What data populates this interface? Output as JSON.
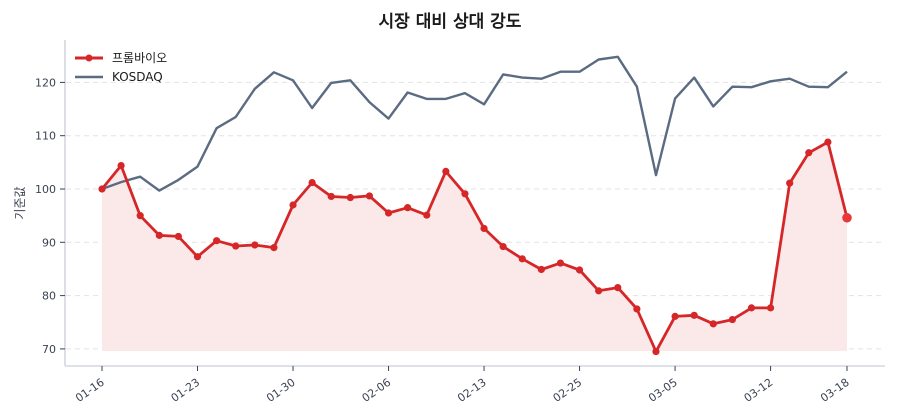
{
  "chart_data": {
    "type": "line",
    "title": "시장 대비 상대 강도",
    "xlabel": "",
    "ylabel": "기준값",
    "ylim": [
      67,
      128
    ],
    "yticks": [
      70,
      80,
      90,
      100,
      110,
      120
    ],
    "grid": true,
    "legend_position": "upper left",
    "x": [
      "01-16",
      "01-17",
      "01-20",
      "01-21",
      "01-22",
      "01-23",
      "01-24",
      "01-27",
      "01-28",
      "01-29",
      "01-30",
      "01-31",
      "02-03",
      "02-04",
      "02-05",
      "02-06",
      "02-07",
      "02-10",
      "02-11",
      "02-12",
      "02-13",
      "02-14",
      "02-17",
      "02-18",
      "02-19",
      "02-25",
      "02-26",
      "02-27",
      "02-28",
      "03-04",
      "03-05",
      "03-06",
      "03-07",
      "03-10",
      "03-11",
      "03-12",
      "03-13",
      "03-14",
      "03-17",
      "03-18"
    ],
    "xtick_labels": [
      {
        "index": 0,
        "label": "01-16"
      },
      {
        "index": 5,
        "label": "01-23"
      },
      {
        "index": 10,
        "label": "01-30"
      },
      {
        "index": 15,
        "label": "02-06"
      },
      {
        "index": 20,
        "label": "02-13"
      },
      {
        "index": 25,
        "label": "02-25"
      },
      {
        "index": 30,
        "label": "03-05"
      },
      {
        "index": 35,
        "label": "03-12"
      },
      {
        "index": 39,
        "label": "03-18"
      }
    ],
    "series": [
      {
        "name": "프롬바이오",
        "color": "#d62728",
        "fill": "#fbe9e9",
        "marker": true,
        "values": [
          100,
          104.4,
          95.0,
          91.3,
          91.1,
          87.3,
          90.3,
          89.3,
          89.5,
          89.0,
          97.0,
          101.2,
          98.6,
          98.4,
          98.7,
          95.5,
          96.5,
          95.1,
          103.3,
          99.1,
          92.6,
          89.2,
          86.9,
          84.9,
          86.1,
          84.8,
          80.9,
          81.5,
          77.5,
          69.5,
          76.1,
          76.3,
          74.7,
          75.5,
          77.7,
          77.7,
          101.1,
          106.8,
          108.8,
          94.6
        ]
      },
      {
        "name": "KOSDAQ",
        "color": "#5b6b82",
        "marker": false,
        "values": [
          100,
          101.3,
          102.3,
          99.7,
          101.7,
          104.2,
          111.4,
          113.5,
          118.8,
          121.9,
          120.4,
          115.2,
          119.9,
          120.4,
          116.3,
          113.2,
          118.1,
          116.9,
          116.9,
          118.0,
          115.9,
          121.5,
          120.9,
          120.7,
          122.0,
          122.0,
          124.3,
          124.8,
          119.2,
          102.6,
          117.0,
          120.9,
          115.5,
          119.2,
          119.1,
          120.2,
          120.7,
          119.2,
          119.1,
          122.0
        ]
      }
    ]
  }
}
